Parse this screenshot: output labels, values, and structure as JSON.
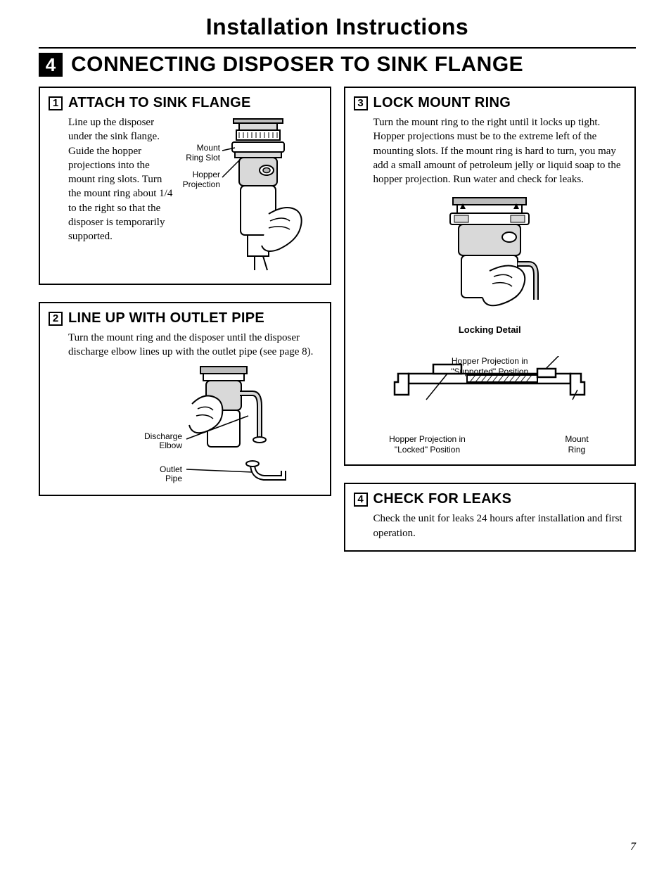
{
  "page": {
    "title": "Installation Instructions",
    "number": "7"
  },
  "section": {
    "number": "4",
    "title": "CONNECTING DISPOSER TO SINK FLANGE"
  },
  "steps": [
    {
      "num": "1",
      "title": "ATTACH TO SINK FLANGE",
      "text": "Line up the disposer under the sink flange. Guide the hopper projections into the mount ring slots. Turn the mount ring about 1/4 to the right so that the disposer is temporarily supported.",
      "labels": {
        "mount_ring_slot": "Mount\nRing Slot",
        "hopper_projection": "Hopper\nProjection"
      }
    },
    {
      "num": "2",
      "title": "LINE UP WITH OUTLET PIPE",
      "text": "Turn the mount ring and the disposer until the disposer discharge elbow lines up with the outlet pipe (see page 8).",
      "labels": {
        "discharge_elbow": "Discharge\nElbow",
        "outlet_pipe": "Outlet Pipe"
      }
    },
    {
      "num": "3",
      "title": "LOCK MOUNT RING",
      "text": "Turn the mount ring to the right until it locks up tight. Hopper projections must be to the extreme left of the mounting slots. If the mount ring is hard to turn, you may add a small amount of petroleum jelly or liquid soap to the hopper projection. Run water and check for leaks.",
      "caption": "Locking Detail",
      "labels": {
        "supported": "Hopper Projection in\n\"Supported\" Position",
        "locked": "Hopper Projection in\n\"Locked\" Position",
        "mount_ring": "Mount\nRing"
      }
    },
    {
      "num": "4",
      "title": "CHECK FOR LEAKS",
      "text": "Check the unit for leaks 24 hours after installation and first operation."
    }
  ],
  "colors": {
    "text": "#000000",
    "bg": "#ffffff",
    "fill_light": "#d9d9d9",
    "fill_mid": "#bdbdbd"
  }
}
